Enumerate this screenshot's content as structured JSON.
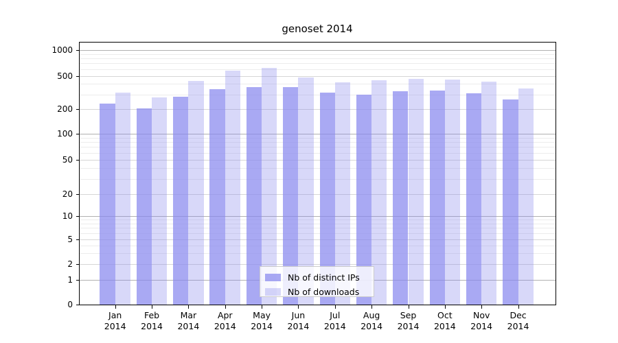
{
  "window": {
    "background": "#ffffff"
  },
  "chart_data": {
    "type": "bar",
    "title": "genoset 2014",
    "months": [
      "Jan",
      "Feb",
      "Mar",
      "Apr",
      "May",
      "Jun",
      "Jul",
      "Aug",
      "Sep",
      "Oct",
      "Nov",
      "Dec"
    ],
    "year": "2014",
    "series": [
      {
        "name": "Nb of distinct IPs",
        "color": "#8888ee",
        "alpha": 0.72,
        "values": [
          232,
          202,
          283,
          345,
          366,
          365,
          312,
          295,
          328,
          334,
          308,
          260
        ]
      },
      {
        "name": "Nb of downloads",
        "color": "#8888ee",
        "alpha": 0.33,
        "values": [
          315,
          275,
          436,
          570,
          617,
          478,
          418,
          445,
          460,
          452,
          423,
          350
        ]
      }
    ],
    "y_ticks": [
      0,
      1,
      2,
      5,
      10,
      20,
      50,
      100,
      200,
      500,
      1000
    ],
    "y_minor_ticks": [
      3,
      4,
      6,
      7,
      8,
      9,
      30,
      40,
      60,
      70,
      80,
      90,
      300,
      400,
      600,
      700,
      800,
      900
    ],
    "yscale": "symlog",
    "ylim": [
      0,
      1150
    ],
    "xlabel": "",
    "ylabel": "",
    "grid": true,
    "legend_position": "lower center",
    "grid_major_pow10_color": "#b0b0b0",
    "grid_major_color": "#d6d6d6",
    "grid_minor_color": "#ececec"
  }
}
